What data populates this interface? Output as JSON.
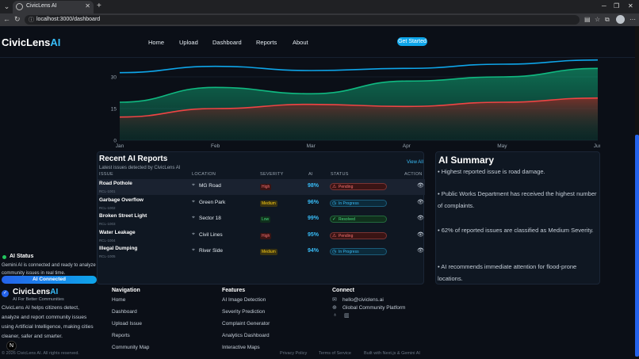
{
  "browser": {
    "tab_title": "CivicLens AI",
    "url": "localhost:3000/dashboard"
  },
  "header": {
    "logo_main": "CivicLens",
    "logo_accent": "AI",
    "nav": [
      "Home",
      "Upload",
      "Dashboard",
      "Reports",
      "About"
    ],
    "cta": "Get Started"
  },
  "chart_data": {
    "type": "area",
    "x": [
      "Jan",
      "Feb",
      "Mar",
      "Apr",
      "May",
      "Jun"
    ],
    "y_ticks": [
      "0",
      "15",
      "30"
    ],
    "ylim": [
      0,
      36
    ],
    "series": [
      {
        "values": [
          32,
          35,
          33,
          34,
          36,
          38
        ],
        "color": "#0ea5e9"
      },
      {
        "values": [
          18,
          25,
          22,
          28,
          30,
          34
        ],
        "color": "#10b981"
      },
      {
        "values": [
          11,
          15,
          17,
          16,
          18,
          20
        ],
        "color": "#ef4444"
      }
    ]
  },
  "reports": {
    "title": "Recent AI Reports",
    "subtitle": "Latest issues detected by CivicLens AI",
    "view_all": "View All",
    "columns": [
      "ISSUE",
      "LOCATION",
      "SEVERITY",
      "AI",
      "STATUS",
      "ACTION"
    ],
    "rows": [
      {
        "title": "Road Pothole",
        "id": "RCL-1001",
        "location": "MG Road",
        "severity": "High",
        "ai": "98%",
        "status": "Pending"
      },
      {
        "title": "Garbage Overflow",
        "id": "RCL-1002",
        "location": "Green Park",
        "severity": "Medium",
        "ai": "96%",
        "status": "In Progress"
      },
      {
        "title": "Broken Street Light",
        "id": "RCL-1003",
        "location": "Sector 18",
        "severity": "Low",
        "ai": "99%",
        "status": "Resolved"
      },
      {
        "title": "Water Leakage",
        "id": "RCL-1004",
        "location": "Civil Lines",
        "severity": "High",
        "ai": "95%",
        "status": "Pending"
      },
      {
        "title": "Illegal Dumping",
        "id": "RCL-1005",
        "location": "River Side",
        "severity": "Medium",
        "ai": "94%",
        "status": "In Progress"
      }
    ]
  },
  "summary": {
    "title": "AI Summary",
    "items": [
      "• Highest reported issue is road damage.",
      "• Public Works Department has received the highest number of complaints.",
      "• 62% of reported issues are classified as Medium Severity.",
      "• AI recommends immediate attention for flood-prone locations."
    ]
  },
  "ai_status": {
    "title": "AI Status",
    "text": "Gemini AI is connected and ready to analyze community issues in real time.",
    "button": "AI Connected"
  },
  "footer": {
    "logo_main": "CivicLens",
    "logo_accent": "AI",
    "tagline": "AI For Better Communities",
    "description": "CivicLens AI helps citizens detect, analyze and report community issues using Artificial Intelligence, making cities cleaner, safer and smarter.",
    "nav_heading": "Navigation",
    "nav_links": [
      "Home",
      "Dashboard",
      "Upload Issue",
      "Reports",
      "Community Map"
    ],
    "features_heading": "Features",
    "features": [
      "AI Image Detection",
      "Severity Prediction",
      "Complaint Generator",
      "Analytics Dashboard",
      "Interactive Maps"
    ],
    "connect_heading": "Connect",
    "email": "hello@civiclens.ai",
    "platform": "Global Community Platform",
    "copyright": "© 2026 CivicLens AI. All rights reserved.",
    "privacy": "Privacy Policy",
    "terms": "Terms of Service",
    "built": "Built with Next.js & Gemini AI",
    "badge": "N"
  },
  "colors": {
    "high": "#ef4444",
    "medium": "#eab308",
    "low": "#22c55e",
    "accent": "#38bdf8"
  }
}
